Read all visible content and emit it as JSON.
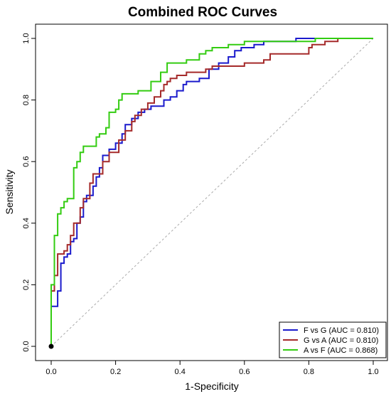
{
  "chart_data": {
    "type": "line",
    "title": "Combined ROC Curves",
    "xlabel": "1-Specificity",
    "ylabel": "Sensitivity",
    "xlim": [
      0,
      1
    ],
    "ylim": [
      0,
      1
    ],
    "xticks": [
      "0.0",
      "0.2",
      "0.4",
      "0.6",
      "0.8",
      "1.0"
    ],
    "yticks": [
      "0.0",
      "0.2",
      "0.4",
      "0.6",
      "0.8",
      "1.0"
    ],
    "grid": false,
    "legend_position": "bottom-right",
    "reference_line": "diagonal",
    "origin_marker": true,
    "series": [
      {
        "name": "F vs G (AUC = 0.810)",
        "color": "#1a1acc",
        "points": [
          [
            0,
            0
          ],
          [
            0,
            0.13
          ],
          [
            0.02,
            0.13
          ],
          [
            0.02,
            0.18
          ],
          [
            0.03,
            0.18
          ],
          [
            0.03,
            0.27
          ],
          [
            0.04,
            0.27
          ],
          [
            0.04,
            0.29
          ],
          [
            0.05,
            0.29
          ],
          [
            0.05,
            0.3
          ],
          [
            0.06,
            0.3
          ],
          [
            0.06,
            0.34
          ],
          [
            0.07,
            0.34
          ],
          [
            0.07,
            0.35
          ],
          [
            0.08,
            0.35
          ],
          [
            0.08,
            0.4
          ],
          [
            0.09,
            0.4
          ],
          [
            0.09,
            0.42
          ],
          [
            0.1,
            0.42
          ],
          [
            0.1,
            0.47
          ],
          [
            0.11,
            0.47
          ],
          [
            0.11,
            0.49
          ],
          [
            0.13,
            0.49
          ],
          [
            0.13,
            0.52
          ],
          [
            0.14,
            0.52
          ],
          [
            0.14,
            0.55
          ],
          [
            0.15,
            0.55
          ],
          [
            0.15,
            0.58
          ],
          [
            0.16,
            0.58
          ],
          [
            0.16,
            0.62
          ],
          [
            0.18,
            0.62
          ],
          [
            0.18,
            0.64
          ],
          [
            0.2,
            0.64
          ],
          [
            0.2,
            0.66
          ],
          [
            0.22,
            0.66
          ],
          [
            0.22,
            0.69
          ],
          [
            0.23,
            0.69
          ],
          [
            0.23,
            0.72
          ],
          [
            0.25,
            0.72
          ],
          [
            0.25,
            0.74
          ],
          [
            0.27,
            0.74
          ],
          [
            0.27,
            0.76
          ],
          [
            0.29,
            0.76
          ],
          [
            0.29,
            0.77
          ],
          [
            0.31,
            0.77
          ],
          [
            0.31,
            0.78
          ],
          [
            0.35,
            0.78
          ],
          [
            0.35,
            0.8
          ],
          [
            0.37,
            0.8
          ],
          [
            0.37,
            0.81
          ],
          [
            0.39,
            0.81
          ],
          [
            0.39,
            0.83
          ],
          [
            0.41,
            0.83
          ],
          [
            0.41,
            0.85
          ],
          [
            0.42,
            0.85
          ],
          [
            0.42,
            0.86
          ],
          [
            0.46,
            0.86
          ],
          [
            0.46,
            0.87
          ],
          [
            0.49,
            0.87
          ],
          [
            0.49,
            0.9
          ],
          [
            0.52,
            0.9
          ],
          [
            0.52,
            0.92
          ],
          [
            0.55,
            0.92
          ],
          [
            0.55,
            0.94
          ],
          [
            0.57,
            0.94
          ],
          [
            0.57,
            0.96
          ],
          [
            0.59,
            0.96
          ],
          [
            0.59,
            0.97
          ],
          [
            0.63,
            0.97
          ],
          [
            0.63,
            0.98
          ],
          [
            0.66,
            0.98
          ],
          [
            0.66,
            0.99
          ],
          [
            0.76,
            0.99
          ],
          [
            0.76,
            1.0
          ],
          [
            1.0,
            1.0
          ]
        ]
      },
      {
        "name": "G vs A (AUC = 0.810)",
        "color": "#a52a2a",
        "points": [
          [
            0,
            0
          ],
          [
            0,
            0.18
          ],
          [
            0.01,
            0.18
          ],
          [
            0.01,
            0.23
          ],
          [
            0.02,
            0.23
          ],
          [
            0.02,
            0.3
          ],
          [
            0.04,
            0.3
          ],
          [
            0.04,
            0.31
          ],
          [
            0.05,
            0.31
          ],
          [
            0.05,
            0.33
          ],
          [
            0.06,
            0.33
          ],
          [
            0.06,
            0.36
          ],
          [
            0.07,
            0.36
          ],
          [
            0.07,
            0.4
          ],
          [
            0.09,
            0.4
          ],
          [
            0.09,
            0.45
          ],
          [
            0.1,
            0.45
          ],
          [
            0.1,
            0.48
          ],
          [
            0.12,
            0.48
          ],
          [
            0.12,
            0.53
          ],
          [
            0.13,
            0.53
          ],
          [
            0.13,
            0.56
          ],
          [
            0.16,
            0.56
          ],
          [
            0.16,
            0.6
          ],
          [
            0.18,
            0.6
          ],
          [
            0.18,
            0.63
          ],
          [
            0.21,
            0.63
          ],
          [
            0.21,
            0.67
          ],
          [
            0.23,
            0.67
          ],
          [
            0.23,
            0.7
          ],
          [
            0.25,
            0.7
          ],
          [
            0.25,
            0.73
          ],
          [
            0.26,
            0.73
          ],
          [
            0.26,
            0.75
          ],
          [
            0.28,
            0.75
          ],
          [
            0.28,
            0.77
          ],
          [
            0.3,
            0.77
          ],
          [
            0.3,
            0.79
          ],
          [
            0.32,
            0.79
          ],
          [
            0.32,
            0.81
          ],
          [
            0.34,
            0.81
          ],
          [
            0.34,
            0.83
          ],
          [
            0.35,
            0.83
          ],
          [
            0.35,
            0.85
          ],
          [
            0.36,
            0.85
          ],
          [
            0.36,
            0.86
          ],
          [
            0.37,
            0.86
          ],
          [
            0.37,
            0.87
          ],
          [
            0.39,
            0.87
          ],
          [
            0.39,
            0.88
          ],
          [
            0.42,
            0.88
          ],
          [
            0.42,
            0.89
          ],
          [
            0.48,
            0.89
          ],
          [
            0.48,
            0.9
          ],
          [
            0.5,
            0.9
          ],
          [
            0.5,
            0.91
          ],
          [
            0.6,
            0.91
          ],
          [
            0.6,
            0.92
          ],
          [
            0.66,
            0.92
          ],
          [
            0.66,
            0.93
          ],
          [
            0.68,
            0.93
          ],
          [
            0.68,
            0.95
          ],
          [
            0.8,
            0.95
          ],
          [
            0.8,
            0.97
          ],
          [
            0.81,
            0.97
          ],
          [
            0.81,
            0.98
          ],
          [
            0.85,
            0.98
          ],
          [
            0.85,
            0.99
          ],
          [
            0.89,
            0.99
          ],
          [
            0.89,
            1.0
          ],
          [
            1.0,
            1.0
          ]
        ]
      },
      {
        "name": "A vs F (AUC = 0.868)",
        "color": "#33cc11",
        "points": [
          [
            0,
            0
          ],
          [
            0,
            0.2
          ],
          [
            0.01,
            0.2
          ],
          [
            0.01,
            0.36
          ],
          [
            0.02,
            0.36
          ],
          [
            0.02,
            0.43
          ],
          [
            0.03,
            0.43
          ],
          [
            0.03,
            0.45
          ],
          [
            0.04,
            0.45
          ],
          [
            0.04,
            0.47
          ],
          [
            0.05,
            0.47
          ],
          [
            0.05,
            0.48
          ],
          [
            0.07,
            0.48
          ],
          [
            0.07,
            0.58
          ],
          [
            0.08,
            0.58
          ],
          [
            0.08,
            0.6
          ],
          [
            0.09,
            0.6
          ],
          [
            0.09,
            0.63
          ],
          [
            0.1,
            0.63
          ],
          [
            0.1,
            0.65
          ],
          [
            0.14,
            0.65
          ],
          [
            0.14,
            0.68
          ],
          [
            0.15,
            0.68
          ],
          [
            0.15,
            0.69
          ],
          [
            0.17,
            0.69
          ],
          [
            0.17,
            0.71
          ],
          [
            0.18,
            0.71
          ],
          [
            0.18,
            0.76
          ],
          [
            0.2,
            0.76
          ],
          [
            0.2,
            0.77
          ],
          [
            0.21,
            0.77
          ],
          [
            0.21,
            0.8
          ],
          [
            0.22,
            0.8
          ],
          [
            0.22,
            0.82
          ],
          [
            0.27,
            0.82
          ],
          [
            0.27,
            0.83
          ],
          [
            0.31,
            0.83
          ],
          [
            0.31,
            0.86
          ],
          [
            0.34,
            0.86
          ],
          [
            0.34,
            0.89
          ],
          [
            0.36,
            0.89
          ],
          [
            0.36,
            0.92
          ],
          [
            0.42,
            0.92
          ],
          [
            0.42,
            0.93
          ],
          [
            0.46,
            0.93
          ],
          [
            0.46,
            0.95
          ],
          [
            0.48,
            0.95
          ],
          [
            0.48,
            0.96
          ],
          [
            0.5,
            0.96
          ],
          [
            0.5,
            0.97
          ],
          [
            0.55,
            0.97
          ],
          [
            0.55,
            0.98
          ],
          [
            0.6,
            0.98
          ],
          [
            0.6,
            0.99
          ],
          [
            0.82,
            0.99
          ],
          [
            0.82,
            1.0
          ],
          [
            1.0,
            1.0
          ]
        ]
      }
    ]
  }
}
